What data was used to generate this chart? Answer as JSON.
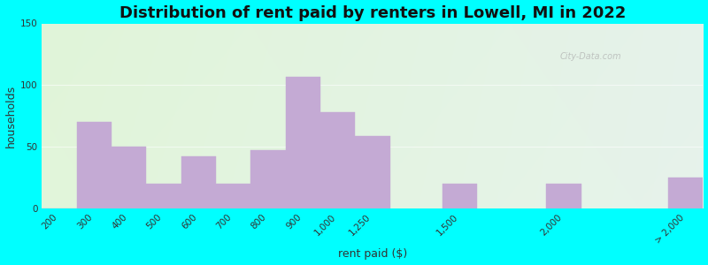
{
  "title": "Distribution of rent paid by renters in Lowell, MI in 2022",
  "xlabel": "rent paid ($)",
  "ylabel": "households",
  "bar_labels": [
    "200",
    "300",
    "400",
    "500",
    "600",
    "700",
    "800",
    "900",
    "1,000",
    "1,250",
    "1,500",
    "2,000",
    "> 2,000"
  ],
  "bar_values": [
    0,
    70,
    50,
    20,
    42,
    20,
    47,
    107,
    78,
    59,
    20,
    20,
    25
  ],
  "bar_positions": [
    0,
    1,
    2,
    3,
    4,
    5,
    6,
    7,
    8,
    9,
    11.5,
    14.5,
    18
  ],
  "bar_width": 1.0,
  "bar_color": "#c4aad4",
  "bar_edge_color": "#c4aad4",
  "ylim": [
    0,
    150
  ],
  "yticks": [
    0,
    50,
    100,
    150
  ],
  "bg_outer": "#00ffff",
  "title_fontsize": 13,
  "axis_label_fontsize": 9,
  "tick_fontsize": 7.5,
  "watermark_text": "City-Data.com"
}
